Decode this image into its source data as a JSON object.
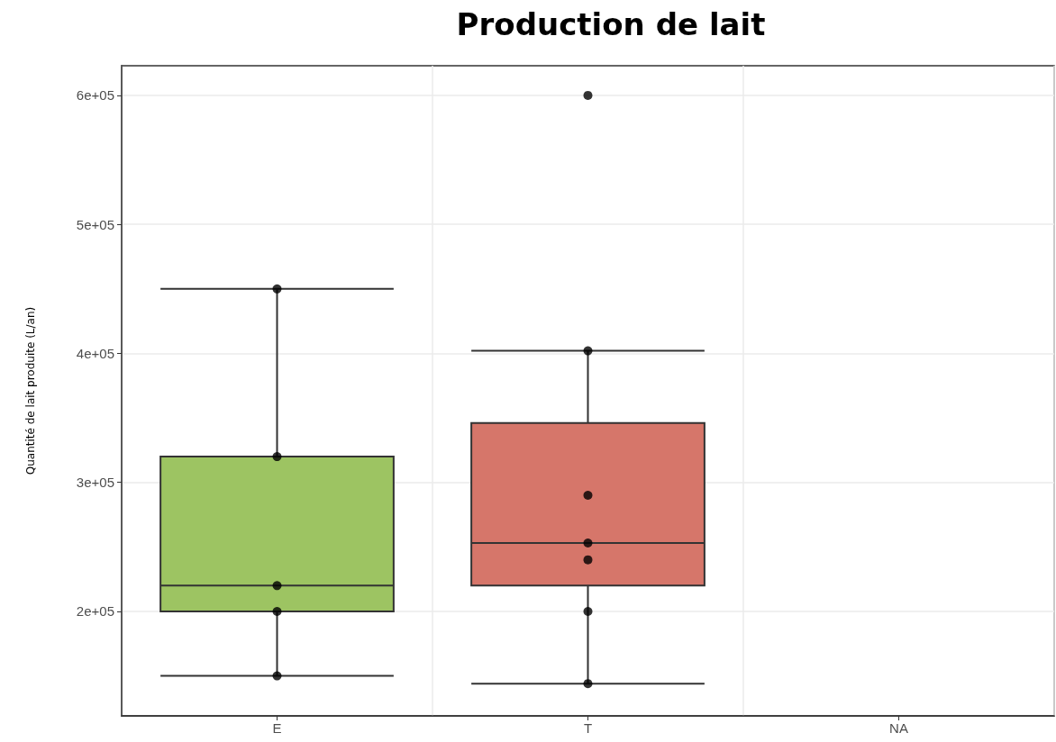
{
  "chart_data": {
    "type": "box",
    "title": "Production de lait",
    "ylabel": "Quantité de lait produite (L/an)",
    "categories": [
      "E",
      "T",
      "NA"
    ],
    "series": [
      {
        "colors": [
          "#9dc462",
          "#d6766a",
          null
        ],
        "boxes": [
          {
            "low": 150000,
            "q1": 200000,
            "median": 220000,
            "q3": 320000,
            "high": 450000
          },
          {
            "low": 144000,
            "q1": 220000,
            "median": 253000,
            "q3": 346000,
            "high": 402000,
            "outliers": [
              600000
            ]
          },
          null
        ]
      },
      {
        "type": "scatter",
        "color": "#000000",
        "x": [
          "E",
          "E",
          "E",
          "E",
          "E",
          "T",
          "T",
          "T",
          "T",
          "T",
          "T"
        ],
        "values": [
          450000,
          320000,
          220000,
          200000,
          150000,
          402000,
          290000,
          253000,
          240000,
          200000,
          144000
        ]
      }
    ],
    "ylim": [
      119000,
      623000
    ],
    "yticks": [
      {
        "value": 200000,
        "label": "2e+05"
      },
      {
        "value": 300000,
        "label": "3e+05"
      },
      {
        "value": 400000,
        "label": "4e+05"
      },
      {
        "value": 500000,
        "label": "5e+05"
      },
      {
        "value": 600000,
        "label": "6e+05"
      }
    ],
    "grid": true,
    "marker": "circle"
  }
}
